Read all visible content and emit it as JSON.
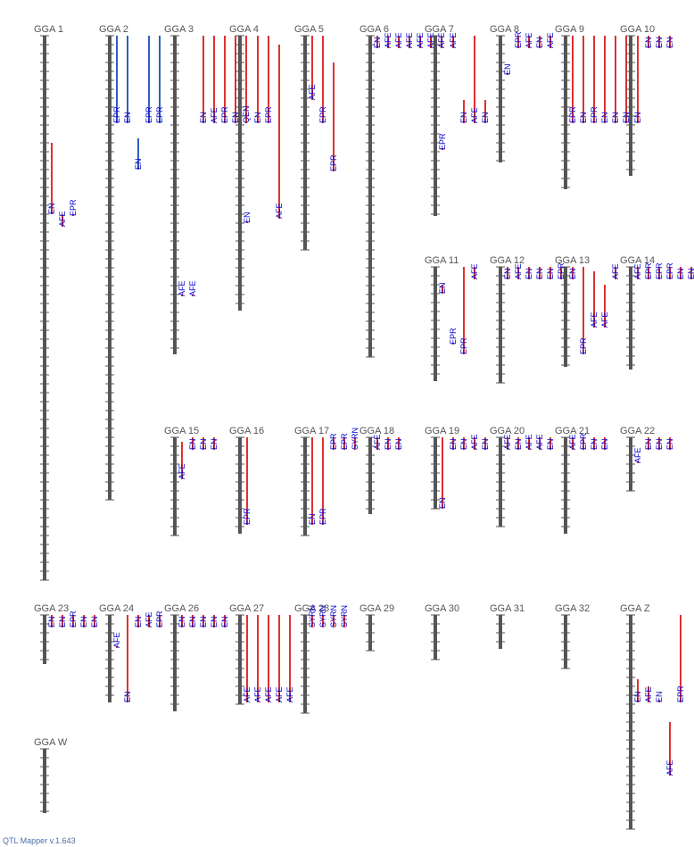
{
  "app": {
    "footer": "QTL Mapper v.1.643"
  },
  "colors": {
    "chromosome": "#555555",
    "tick": "#555555",
    "qtl_red": "#e03030",
    "qtl_blue": "#2f5fbf",
    "label": "#0000cc"
  },
  "chromosomes": [
    {
      "name": "GGA 1",
      "length": 610,
      "qtls": [
        {
          "trait": "EN",
          "start": 120,
          "end": 200,
          "color": "red"
        },
        {
          "trait": "AFE",
          "start": 200,
          "end": 214,
          "color": "red"
        },
        {
          "trait": "EPR",
          "start": 200,
          "end": 200,
          "color": "red"
        }
      ]
    },
    {
      "name": "GGA 2",
      "length": 520,
      "qtls": [
        {
          "trait": "EPR",
          "start": 0,
          "end": 98,
          "color": "blue"
        },
        {
          "trait": "EN",
          "start": 0,
          "end": 98,
          "color": "blue"
        },
        {
          "trait": "EN",
          "start": 115,
          "end": 150,
          "color": "blue"
        },
        {
          "trait": "EPR",
          "start": 0,
          "end": 98,
          "color": "blue"
        },
        {
          "trait": "EPR",
          "start": 0,
          "end": 98,
          "color": "blue"
        }
      ]
    },
    {
      "name": "GGA 3",
      "length": 357,
      "qtls": [
        {
          "trait": "AFE",
          "start": 290,
          "end": 290,
          "color": "red"
        },
        {
          "trait": "AFE",
          "start": 290,
          "end": 290,
          "color": "red"
        },
        {
          "trait": "EN",
          "start": 0,
          "end": 98,
          "color": "red"
        },
        {
          "trait": "AFE",
          "start": 0,
          "end": 98,
          "color": "red"
        },
        {
          "trait": "EPR",
          "start": 0,
          "end": 98,
          "color": "red"
        },
        {
          "trait": "EN",
          "start": 0,
          "end": 98,
          "color": "red"
        },
        {
          "trait": "QEN",
          "start": 0,
          "end": 98,
          "color": "red"
        }
      ]
    },
    {
      "name": "GGA 4",
      "length": 308,
      "qtls": [
        {
          "trait": "EN",
          "start": 208,
          "end": 208,
          "color": "red"
        },
        {
          "trait": "EN",
          "start": 0,
          "end": 98,
          "color": "red"
        },
        {
          "trait": "EPR",
          "start": 0,
          "end": 98,
          "color": "red"
        },
        {
          "trait": "AFE",
          "start": 10,
          "end": 205,
          "color": "red"
        }
      ]
    },
    {
      "name": "GGA 5",
      "length": 240,
      "qtls": [
        {
          "trait": "AFE",
          "start": 0,
          "end": 72,
          "color": "red"
        },
        {
          "trait": "EPR",
          "start": 0,
          "end": 98,
          "color": "red"
        },
        {
          "trait": "EPR",
          "start": 30,
          "end": 152,
          "color": "red"
        }
      ]
    },
    {
      "name": "GGA 6",
      "length": 360,
      "qtls": [
        {
          "trait": "EN",
          "start": 0,
          "end": 14,
          "color": "red"
        },
        {
          "trait": "AFE",
          "start": 0,
          "end": 14,
          "color": "red"
        },
        {
          "trait": "AFE",
          "start": 0,
          "end": 14,
          "color": "red"
        },
        {
          "trait": "AFE",
          "start": 0,
          "end": 14,
          "color": "red"
        },
        {
          "trait": "AFE",
          "start": 0,
          "end": 14,
          "color": "red"
        },
        {
          "trait": "AFE",
          "start": 0,
          "end": 14,
          "color": "red"
        },
        {
          "trait": "AFE",
          "start": 0,
          "end": 14,
          "color": "red"
        }
      ]
    },
    {
      "name": "GGA 7",
      "length": 202,
      "qtls": [
        {
          "trait": "EPR",
          "start": 126,
          "end": 126,
          "color": "red"
        },
        {
          "trait": "AFE",
          "start": 0,
          "end": 14,
          "color": "red"
        },
        {
          "trait": "EN",
          "start": 72,
          "end": 98,
          "color": "red"
        },
        {
          "trait": "AFE",
          "start": 0,
          "end": 98,
          "color": "red"
        },
        {
          "trait": "EN",
          "start": 72,
          "end": 98,
          "color": "red"
        }
      ]
    },
    {
      "name": "GGA 8",
      "length": 142,
      "qtls": [
        {
          "trait": "EN",
          "start": 42,
          "end": 42,
          "color": "red"
        },
        {
          "trait": "EPR",
          "start": 0,
          "end": 14,
          "color": "red"
        },
        {
          "trait": "AFE",
          "start": 0,
          "end": 14,
          "color": "red"
        },
        {
          "trait": "EN",
          "start": 0,
          "end": 14,
          "color": "red"
        },
        {
          "trait": "AFE",
          "start": 0,
          "end": 14,
          "color": "red"
        }
      ]
    },
    {
      "name": "GGA 9",
      "length": 172,
      "qtls": [
        {
          "trait": "EPR",
          "start": 0,
          "end": 98,
          "color": "red"
        },
        {
          "trait": "EN",
          "start": 0,
          "end": 98,
          "color": "red"
        },
        {
          "trait": "EPR",
          "start": 0,
          "end": 98,
          "color": "red"
        },
        {
          "trait": "EN",
          "start": 0,
          "end": 98,
          "color": "red"
        },
        {
          "trait": "EN",
          "start": 0,
          "end": 98,
          "color": "red"
        },
        {
          "trait": "EN",
          "start": 0,
          "end": 98,
          "color": "red"
        }
      ]
    },
    {
      "name": "GGA 10",
      "length": 157,
      "qtls": [
        {
          "trait": "EN",
          "start": 0,
          "end": 98,
          "color": "red"
        },
        {
          "trait": "EN",
          "start": 0,
          "end": 14,
          "color": "red"
        },
        {
          "trait": "EN",
          "start": 0,
          "end": 14,
          "color": "red"
        },
        {
          "trait": "EN",
          "start": 0,
          "end": 14,
          "color": "red"
        }
      ]
    },
    {
      "name": "GGA 11",
      "length": 128,
      "qtls": [
        {
          "trait": "EN",
          "start": 20,
          "end": 30,
          "color": "red"
        },
        {
          "trait": "EPR",
          "start": 85,
          "end": 85,
          "color": "red"
        },
        {
          "trait": "EPR",
          "start": 0,
          "end": 98,
          "color": "red"
        },
        {
          "trait": "AFE",
          "start": 0,
          "end": 14,
          "color": "red"
        }
      ]
    },
    {
      "name": "GGA 12",
      "length": 130,
      "qtls": [
        {
          "trait": "EN",
          "start": 0,
          "end": 14,
          "color": "red"
        },
        {
          "trait": "AFE",
          "start": 0,
          "end": 14,
          "color": "red"
        },
        {
          "trait": "EN",
          "start": 0,
          "end": 14,
          "color": "red"
        },
        {
          "trait": "EN",
          "start": 0,
          "end": 14,
          "color": "red"
        },
        {
          "trait": "EN",
          "start": 0,
          "end": 14,
          "color": "red"
        },
        {
          "trait": "EPR",
          "start": 0,
          "end": 14,
          "color": "red"
        }
      ]
    },
    {
      "name": "GGA 13",
      "length": 112,
      "qtls": [
        {
          "trait": "EN",
          "start": 0,
          "end": 14,
          "color": "red"
        },
        {
          "trait": "EPR",
          "start": 0,
          "end": 98,
          "color": "red"
        },
        {
          "trait": "AFE",
          "start": 5,
          "end": 68,
          "color": "red"
        },
        {
          "trait": "AFE",
          "start": 20,
          "end": 68,
          "color": "red"
        },
        {
          "trait": "AFE",
          "start": 0,
          "end": 14,
          "color": "red"
        }
      ]
    },
    {
      "name": "GGA 14",
      "length": 115,
      "qtls": [
        {
          "trait": "AFE",
          "start": 0,
          "end": 14,
          "color": "red"
        },
        {
          "trait": "EPR",
          "start": 0,
          "end": 14,
          "color": "red"
        },
        {
          "trait": "EPR",
          "start": 0,
          "end": 14,
          "color": "red"
        },
        {
          "trait": "EPR",
          "start": 0,
          "end": 14,
          "color": "red"
        },
        {
          "trait": "EN",
          "start": 0,
          "end": 14,
          "color": "red"
        },
        {
          "trait": "EN",
          "start": 0,
          "end": 14,
          "color": "red"
        }
      ]
    },
    {
      "name": "GGA 15",
      "length": 110,
      "qtls": [
        {
          "trait": "AFE",
          "start": 5,
          "end": 47,
          "color": "red"
        },
        {
          "trait": "EN",
          "start": 0,
          "end": 14,
          "color": "red"
        },
        {
          "trait": "EN",
          "start": 0,
          "end": 14,
          "color": "red"
        },
        {
          "trait": "EN",
          "start": 0,
          "end": 14,
          "color": "red"
        }
      ]
    },
    {
      "name": "GGA 16",
      "length": 108,
      "qtls": [
        {
          "trait": "EPR",
          "start": 0,
          "end": 98,
          "color": "red"
        }
      ]
    },
    {
      "name": "GGA 17",
      "length": 110,
      "qtls": [
        {
          "trait": "EN",
          "start": 0,
          "end": 98,
          "color": "red"
        },
        {
          "trait": "EPR",
          "start": 0,
          "end": 98,
          "color": "red"
        },
        {
          "trait": "EPR",
          "start": 0,
          "end": 14,
          "color": "red"
        },
        {
          "trait": "EPR",
          "start": 0,
          "end": 14,
          "color": "red"
        },
        {
          "trait": "SYRN",
          "start": 0,
          "end": 14,
          "color": "red"
        }
      ]
    },
    {
      "name": "GGA 18",
      "length": 86,
      "qtls": [
        {
          "trait": "AFE",
          "start": 0,
          "end": 14,
          "color": "red"
        },
        {
          "trait": "EN",
          "start": 0,
          "end": 14,
          "color": "red"
        },
        {
          "trait": "EN",
          "start": 0,
          "end": 14,
          "color": "red"
        }
      ]
    },
    {
      "name": "GGA 19",
      "length": 80,
      "qtls": [
        {
          "trait": "EN",
          "start": 0,
          "end": 80,
          "color": "red"
        },
        {
          "trait": "EN",
          "start": 0,
          "end": 14,
          "color": "red"
        },
        {
          "trait": "EN",
          "start": 0,
          "end": 14,
          "color": "red"
        },
        {
          "trait": "AFE",
          "start": 0,
          "end": 14,
          "color": "red"
        },
        {
          "trait": "EN",
          "start": 0,
          "end": 14,
          "color": "red"
        }
      ]
    },
    {
      "name": "GGA 20",
      "length": 100,
      "qtls": [
        {
          "trait": "AFE",
          "start": 0,
          "end": 14,
          "color": "red"
        },
        {
          "trait": "EN",
          "start": 0,
          "end": 14,
          "color": "red"
        },
        {
          "trait": "AFE",
          "start": 0,
          "end": 14,
          "color": "red"
        },
        {
          "trait": "AFE",
          "start": 0,
          "end": 14,
          "color": "red"
        },
        {
          "trait": "EN",
          "start": 0,
          "end": 14,
          "color": "red"
        }
      ]
    },
    {
      "name": "GGA 21",
      "length": 108,
      "qtls": [
        {
          "trait": "AFE",
          "start": 0,
          "end": 14,
          "color": "red"
        },
        {
          "trait": "EPR",
          "start": 0,
          "end": 14,
          "color": "red"
        },
        {
          "trait": "EN",
          "start": 0,
          "end": 14,
          "color": "red"
        },
        {
          "trait": "EN",
          "start": 0,
          "end": 14,
          "color": "red"
        }
      ]
    },
    {
      "name": "GGA 22",
      "length": 60,
      "qtls": [
        {
          "trait": "AFE",
          "start": 27,
          "end": 27,
          "color": "red"
        },
        {
          "trait": "EN",
          "start": 0,
          "end": 14,
          "color": "red"
        },
        {
          "trait": "EN",
          "start": 0,
          "end": 14,
          "color": "red"
        },
        {
          "trait": "EN",
          "start": 0,
          "end": 14,
          "color": "red"
        }
      ]
    },
    {
      "name": "GGA 23",
      "length": 55,
      "qtls": [
        {
          "trait": "EN",
          "start": 0,
          "end": 14,
          "color": "red"
        },
        {
          "trait": "EN",
          "start": 0,
          "end": 14,
          "color": "red"
        },
        {
          "trait": "EPR",
          "start": 0,
          "end": 14,
          "color": "red"
        },
        {
          "trait": "EN",
          "start": 0,
          "end": 14,
          "color": "red"
        },
        {
          "trait": "EN",
          "start": 0,
          "end": 14,
          "color": "red"
        }
      ]
    },
    {
      "name": "GGA 24",
      "length": 98,
      "qtls": [
        {
          "trait": "AFE",
          "start": 35,
          "end": 35,
          "color": "red"
        },
        {
          "trait": "EN",
          "start": 0,
          "end": 98,
          "color": "red"
        },
        {
          "trait": "EN",
          "start": 0,
          "end": 14,
          "color": "red"
        },
        {
          "trait": "AFE",
          "start": 0,
          "end": 14,
          "color": "red"
        },
        {
          "trait": "EPR",
          "start": 0,
          "end": 14,
          "color": "red"
        }
      ]
    },
    {
      "name": "GGA 26",
      "length": 108,
      "qtls": [
        {
          "trait": "EN",
          "start": 0,
          "end": 14,
          "color": "red"
        },
        {
          "trait": "EN",
          "start": 0,
          "end": 14,
          "color": "red"
        },
        {
          "trait": "EN",
          "start": 0,
          "end": 14,
          "color": "red"
        },
        {
          "trait": "EN",
          "start": 0,
          "end": 14,
          "color": "red"
        },
        {
          "trait": "EN",
          "start": 0,
          "end": 14,
          "color": "red"
        }
      ]
    },
    {
      "name": "GGA 27",
      "length": 100,
      "qtls": [
        {
          "trait": "AFE",
          "start": 0,
          "end": 98,
          "color": "red"
        },
        {
          "trait": "AFE",
          "start": 0,
          "end": 98,
          "color": "red"
        },
        {
          "trait": "AFE",
          "start": 0,
          "end": 98,
          "color": "red"
        },
        {
          "trait": "AFE",
          "start": 0,
          "end": 98,
          "color": "red"
        },
        {
          "trait": "AFE",
          "start": 0,
          "end": 98,
          "color": "red"
        }
      ]
    },
    {
      "name": "GGA 28",
      "length": 110,
      "qtls": [
        {
          "trait": "SYRN",
          "start": 0,
          "end": 14,
          "color": "red"
        },
        {
          "trait": "SYRN",
          "start": 0,
          "end": 14,
          "color": "red"
        },
        {
          "trait": "SYRN",
          "start": 0,
          "end": 14,
          "color": "red"
        },
        {
          "trait": "SYRN",
          "start": 0,
          "end": 14,
          "color": "red"
        }
      ]
    },
    {
      "name": "GGA 29",
      "length": 40,
      "qtls": []
    },
    {
      "name": "GGA 30",
      "length": 50,
      "qtls": []
    },
    {
      "name": "GGA 31",
      "length": 38,
      "qtls": []
    },
    {
      "name": "GGA 32",
      "length": 60,
      "qtls": []
    },
    {
      "name": "GGA Z",
      "length": 240,
      "qtls": [
        {
          "trait": "EN",
          "start": 72,
          "end": 98,
          "color": "red"
        },
        {
          "trait": "AFE",
          "start": 80,
          "end": 98,
          "color": "red"
        },
        {
          "trait": "EN",
          "start": 95,
          "end": 98,
          "color": "red"
        },
        {
          "trait": "AFE",
          "start": 120,
          "end": 180,
          "color": "red"
        },
        {
          "trait": "EPR",
          "start": 0,
          "end": 98,
          "color": "red"
        }
      ]
    },
    {
      "name": "GGA W",
      "length": 72,
      "qtls": []
    }
  ]
}
